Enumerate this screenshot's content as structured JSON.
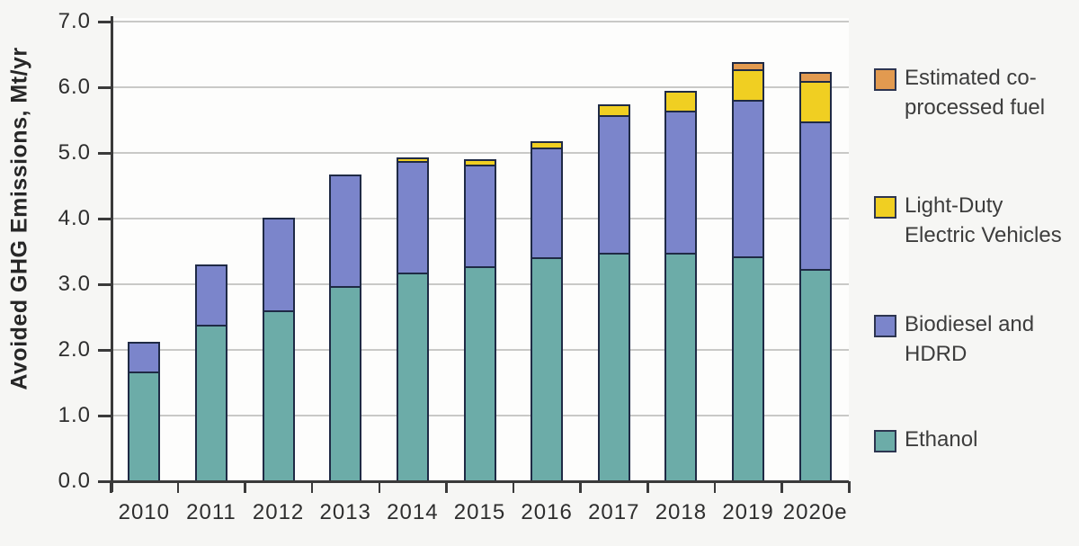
{
  "chart_data": {
    "type": "bar",
    "stacked": true,
    "title": "",
    "xlabel": "",
    "ylabel": "Avoided GHG Emissions, Mt/yr",
    "ylim": [
      0,
      7
    ],
    "ytick_step": 1.0,
    "ytick_labels": [
      "0.0",
      "1.0",
      "2.0",
      "3.0",
      "4.0",
      "5.0",
      "6.0",
      "7.0"
    ],
    "grid": true,
    "legend_position": "right",
    "categories": [
      "2010",
      "2011",
      "2012",
      "2013",
      "2014",
      "2015",
      "2016",
      "2017",
      "2018",
      "2019",
      "2020e"
    ],
    "series": [
      {
        "name": "Ethanol",
        "color": "#6caca8",
        "values": [
          1.65,
          2.35,
          2.58,
          2.95,
          3.15,
          3.25,
          3.38,
          3.45,
          3.45,
          3.4,
          3.2
        ]
      },
      {
        "name": "Biodiesel and HDRD",
        "color": "#7b85cb",
        "values": [
          0.45,
          0.93,
          1.4,
          1.7,
          1.7,
          1.55,
          1.67,
          2.1,
          2.17,
          2.38,
          2.25
        ]
      },
      {
        "name": "Light-Duty Electric Vehicles",
        "color": "#f0cf22",
        "values": [
          0,
          0,
          0,
          0,
          0.05,
          0.08,
          0.1,
          0.16,
          0.3,
          0.46,
          0.62
        ]
      },
      {
        "name": "Estimated co-processed fuel",
        "color": "#e29a50",
        "values": [
          0,
          0,
          0,
          0,
          0,
          0,
          0,
          0,
          0,
          0.11,
          0.14
        ]
      }
    ],
    "totals": [
      2.1,
      3.28,
      3.98,
      4.65,
      4.9,
      4.88,
      5.15,
      5.71,
      5.92,
      6.35,
      6.21
    ],
    "bar_border_color": "#1f2a45",
    "axis_color": "#3a3a3a",
    "gridline_color": "#c9c9c7",
    "legend": [
      {
        "label_lines": [
          "Estimated co-",
          "processed fuel"
        ],
        "color": "#e29a50"
      },
      {
        "label_lines": [
          "Light-Duty",
          "Electric Vehicles"
        ],
        "color": "#f0cf22"
      },
      {
        "label_lines": [
          "Biodiesel and",
          "HDRD"
        ],
        "color": "#7b85cb"
      },
      {
        "label_lines": [
          "Ethanol"
        ],
        "color": "#6caca8"
      }
    ]
  }
}
